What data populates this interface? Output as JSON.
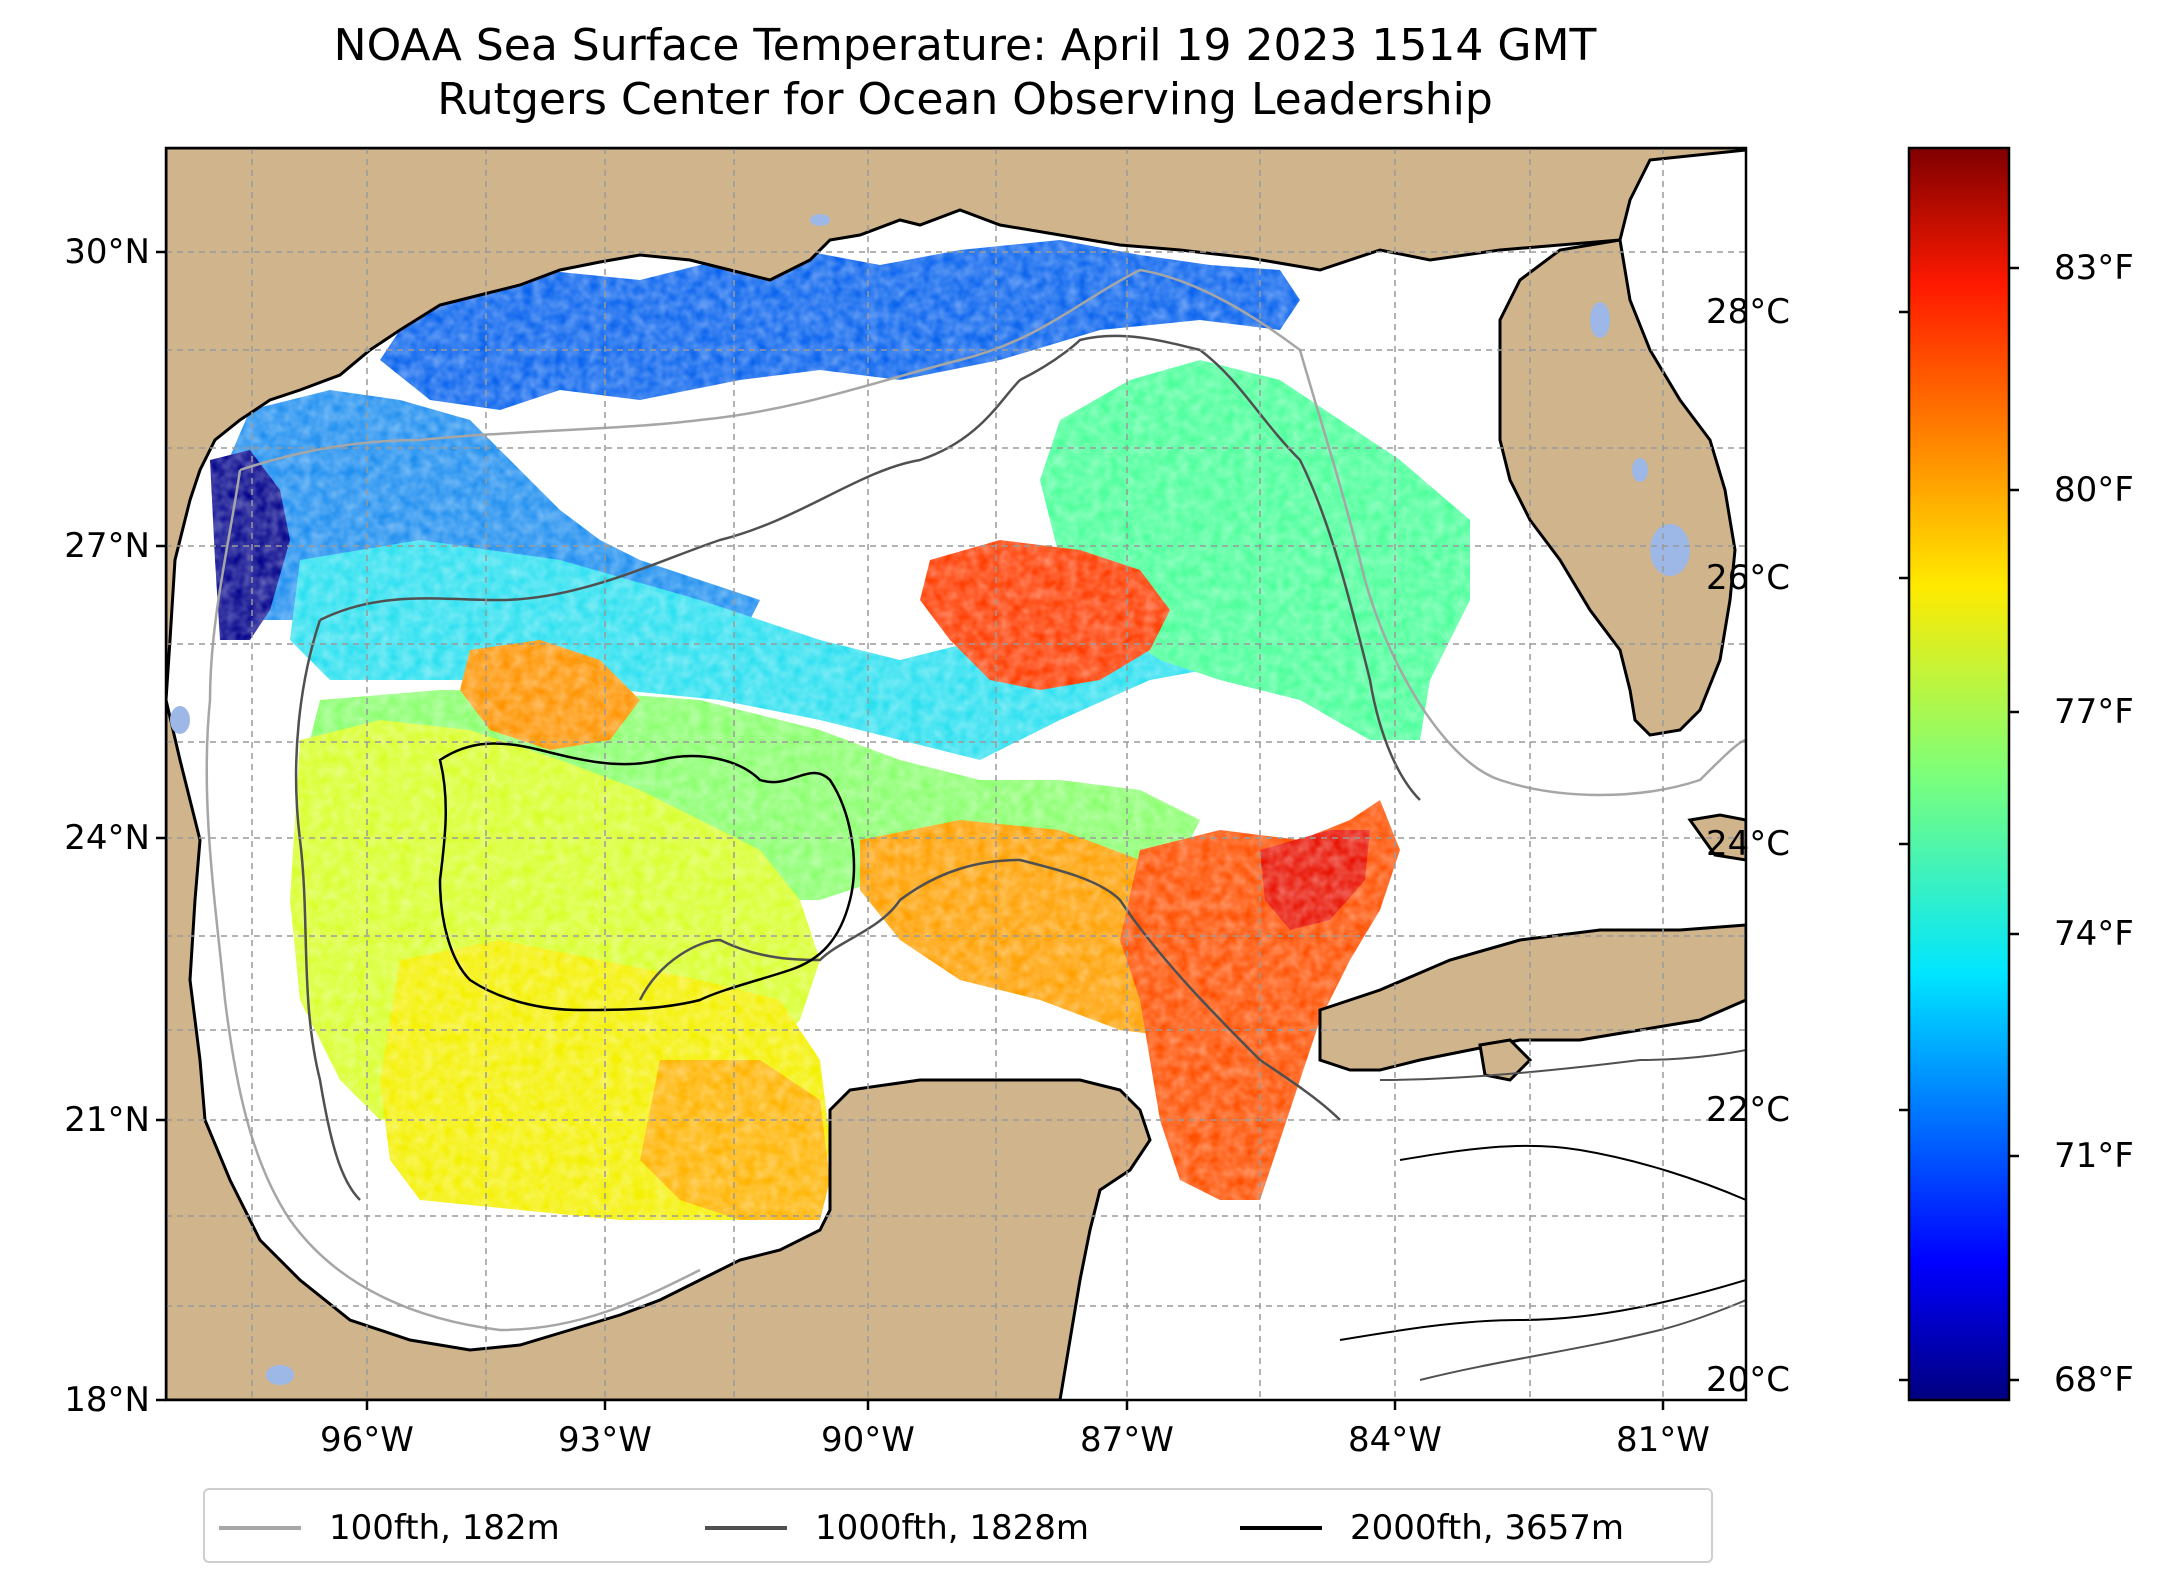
{
  "title": {
    "line1": "NOAA Sea Surface Temperature: April 19 2023 1514 GMT",
    "line2": "Rutgers Center for Ocean Observing Leadership"
  },
  "map": {
    "lat_labels": [
      "30°N",
      "27°N",
      "24°N",
      "21°N",
      "18°N"
    ],
    "lon_labels": [
      "96°W",
      "93°W",
      "90°W",
      "87°W",
      "84°W",
      "81°W"
    ],
    "colors": {
      "land": "#cfb48c",
      "lakes": "#9db8e6",
      "coastline": "#000000",
      "gridlines": "#9a9a9a",
      "ocean_no_data": "#ffffff"
    }
  },
  "colorbar": {
    "colormap": "jet",
    "celsius_labels": [
      "28°C",
      "26°C",
      "24°C",
      "22°C",
      "20°C"
    ],
    "fahrenheit_labels": [
      "83°F",
      "80°F",
      "77°F",
      "74°F",
      "71°F",
      "68°F"
    ],
    "range_celsius": [
      19.9,
      29.4
    ]
  },
  "legend": {
    "items": [
      {
        "label": "100fth, 182m",
        "color": "#a6a6a6"
      },
      {
        "label": "1000fth, 1828m",
        "color": "#505050"
      },
      {
        "label": "2000fth, 3657m",
        "color": "#000000"
      }
    ]
  }
}
